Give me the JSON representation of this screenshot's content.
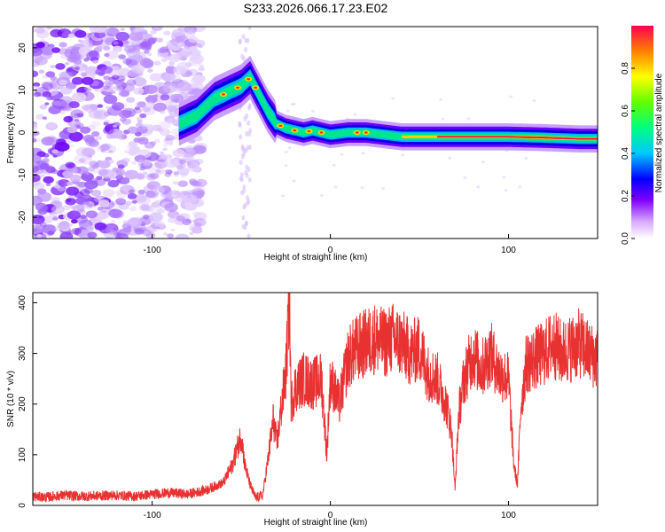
{
  "title": "S233.2026.066.17.23.E02",
  "chart_data": [
    {
      "type": "heatmap",
      "xlabel": "Height of straight line (km)",
      "ylabel": "Frequency (Hz)",
      "xlim": [
        -167,
        150
      ],
      "ylim": [
        -25,
        25
      ],
      "xticks": [
        -100,
        0,
        100
      ],
      "xtick_labels": [
        "-100",
        "0",
        "100"
      ],
      "yticks": [
        20,
        10,
        0,
        -10,
        -20
      ],
      "ytick_labels": [
        "20",
        "10",
        "0",
        "-10",
        "-20"
      ],
      "ridge": {
        "x": [
          -85,
          -75,
          -65,
          -55,
          -50,
          -45,
          -40,
          -35,
          -30,
          -25,
          -20,
          -15,
          -10,
          -5,
          0,
          10,
          20,
          40,
          60,
          80,
          100,
          120,
          140,
          150
        ],
        "frequency": [
          2,
          4,
          8,
          10,
          11,
          13,
          9,
          5,
          2,
          1,
          0.5,
          0,
          0.5,
          0,
          -0.5,
          0,
          0,
          -1,
          -1,
          -1,
          -1,
          -1.2,
          -1.5,
          -1.5
        ]
      },
      "colorbar": {
        "label": "Normalized spectral amplitude",
        "range": [
          0,
          1
        ],
        "ticks": [
          0.0,
          0.2,
          0.4,
          0.6,
          0.8
        ],
        "tick_labels": [
          "0.0",
          "0.2",
          "0.4",
          "0.6",
          "0.8"
        ]
      },
      "grid": false
    },
    {
      "type": "line",
      "xlabel": "Height of straight line (km)",
      "ylabel": "SNR (10 * v/v)",
      "xlim": [
        -167,
        150
      ],
      "ylim": [
        0,
        420
      ],
      "xticks": [
        -100,
        0,
        100
      ],
      "xtick_labels": [
        "-100",
        "0",
        "100"
      ],
      "yticks": [
        0,
        100,
        200,
        300,
        400
      ],
      "ytick_labels": [
        "0",
        "100",
        "200",
        "300",
        "400"
      ],
      "series": [
        {
          "color": "#e83232",
          "x": [
            -167,
            -160,
            -150,
            -140,
            -130,
            -120,
            -110,
            -100,
            -90,
            -80,
            -70,
            -60,
            -55,
            -50,
            -48,
            -45,
            -42,
            -38,
            -35,
            -32,
            -30,
            -28,
            -25,
            -23,
            -22,
            -20,
            -15,
            -10,
            -5,
            -2,
            0,
            5,
            10,
            12,
            15,
            20,
            25,
            30,
            35,
            40,
            45,
            50,
            55,
            60,
            65,
            68,
            70,
            72,
            75,
            80,
            85,
            90,
            95,
            100,
            103,
            105,
            107,
            110,
            115,
            120,
            125,
            130,
            135,
            140,
            145,
            150
          ],
          "y": [
            18,
            16,
            20,
            18,
            19,
            20,
            18,
            22,
            25,
            22,
            30,
            45,
            80,
            140,
            80,
            40,
            15,
            20,
            90,
            170,
            120,
            180,
            260,
            410,
            200,
            230,
            250,
            240,
            250,
            100,
            250,
            200,
            290,
            300,
            310,
            320,
            330,
            320,
            330,
            320,
            300,
            310,
            260,
            250,
            200,
            150,
            30,
            180,
            250,
            300,
            270,
            300,
            260,
            250,
            80,
            40,
            200,
            280,
            290,
            300,
            320,
            300,
            310,
            320,
            300,
            290
          ]
        }
      ],
      "grid": false
    }
  ]
}
